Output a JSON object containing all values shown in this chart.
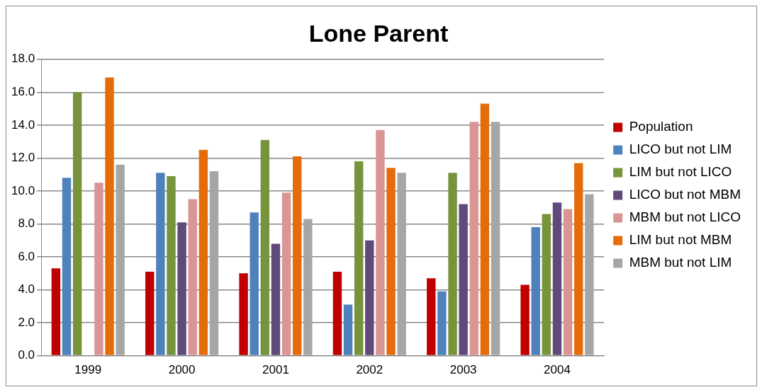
{
  "chart_data": {
    "type": "bar",
    "title": "Lone Parent",
    "categories": [
      "1999",
      "2000",
      "2001",
      "2002",
      "2003",
      "2004"
    ],
    "series": [
      {
        "name": "Population",
        "color": "#c00000",
        "values": [
          5.3,
          5.1,
          5.0,
          5.1,
          4.7,
          4.3
        ]
      },
      {
        "name": "LICO but not LIM",
        "color": "#4f81bd",
        "values": [
          10.8,
          11.1,
          8.7,
          3.1,
          3.9,
          7.8
        ]
      },
      {
        "name": "LIM but not LICO",
        "color": "#77933c",
        "values": [
          16.0,
          10.9,
          13.1,
          11.8,
          11.1,
          8.6
        ]
      },
      {
        "name": "LICO but not MBM",
        "color": "#604a7b",
        "values": [
          null,
          8.1,
          6.8,
          7.0,
          9.2,
          9.3
        ]
      },
      {
        "name": "MBM but not LICO",
        "color": "#d99694",
        "values": [
          10.5,
          9.5,
          9.9,
          13.7,
          14.2,
          8.9
        ]
      },
      {
        "name": "LIM but not MBM",
        "color": "#e46c0a",
        "values": [
          16.9,
          12.5,
          12.1,
          11.4,
          15.3,
          11.7
        ]
      },
      {
        "name": "MBM but not LIM",
        "color": "#a6a6a6",
        "values": [
          11.6,
          11.2,
          8.3,
          11.1,
          14.2,
          9.8
        ]
      }
    ],
    "ylim": [
      0,
      18
    ],
    "yticks": [
      {
        "value": 0,
        "label": "0.0"
      },
      {
        "value": 2,
        "label": "2.0"
      },
      {
        "value": 4,
        "label": "4.0"
      },
      {
        "value": 6,
        "label": "6.0"
      },
      {
        "value": 8,
        "label": "8.0"
      },
      {
        "value": 10,
        "label": "10.0"
      },
      {
        "value": 12,
        "label": "12.0"
      },
      {
        "value": 14,
        "label": "14.0"
      },
      {
        "value": 16,
        "label": "16.0"
      },
      {
        "value": 18,
        "label": "18.0"
      }
    ],
    "grid": "y",
    "legend": "right"
  }
}
